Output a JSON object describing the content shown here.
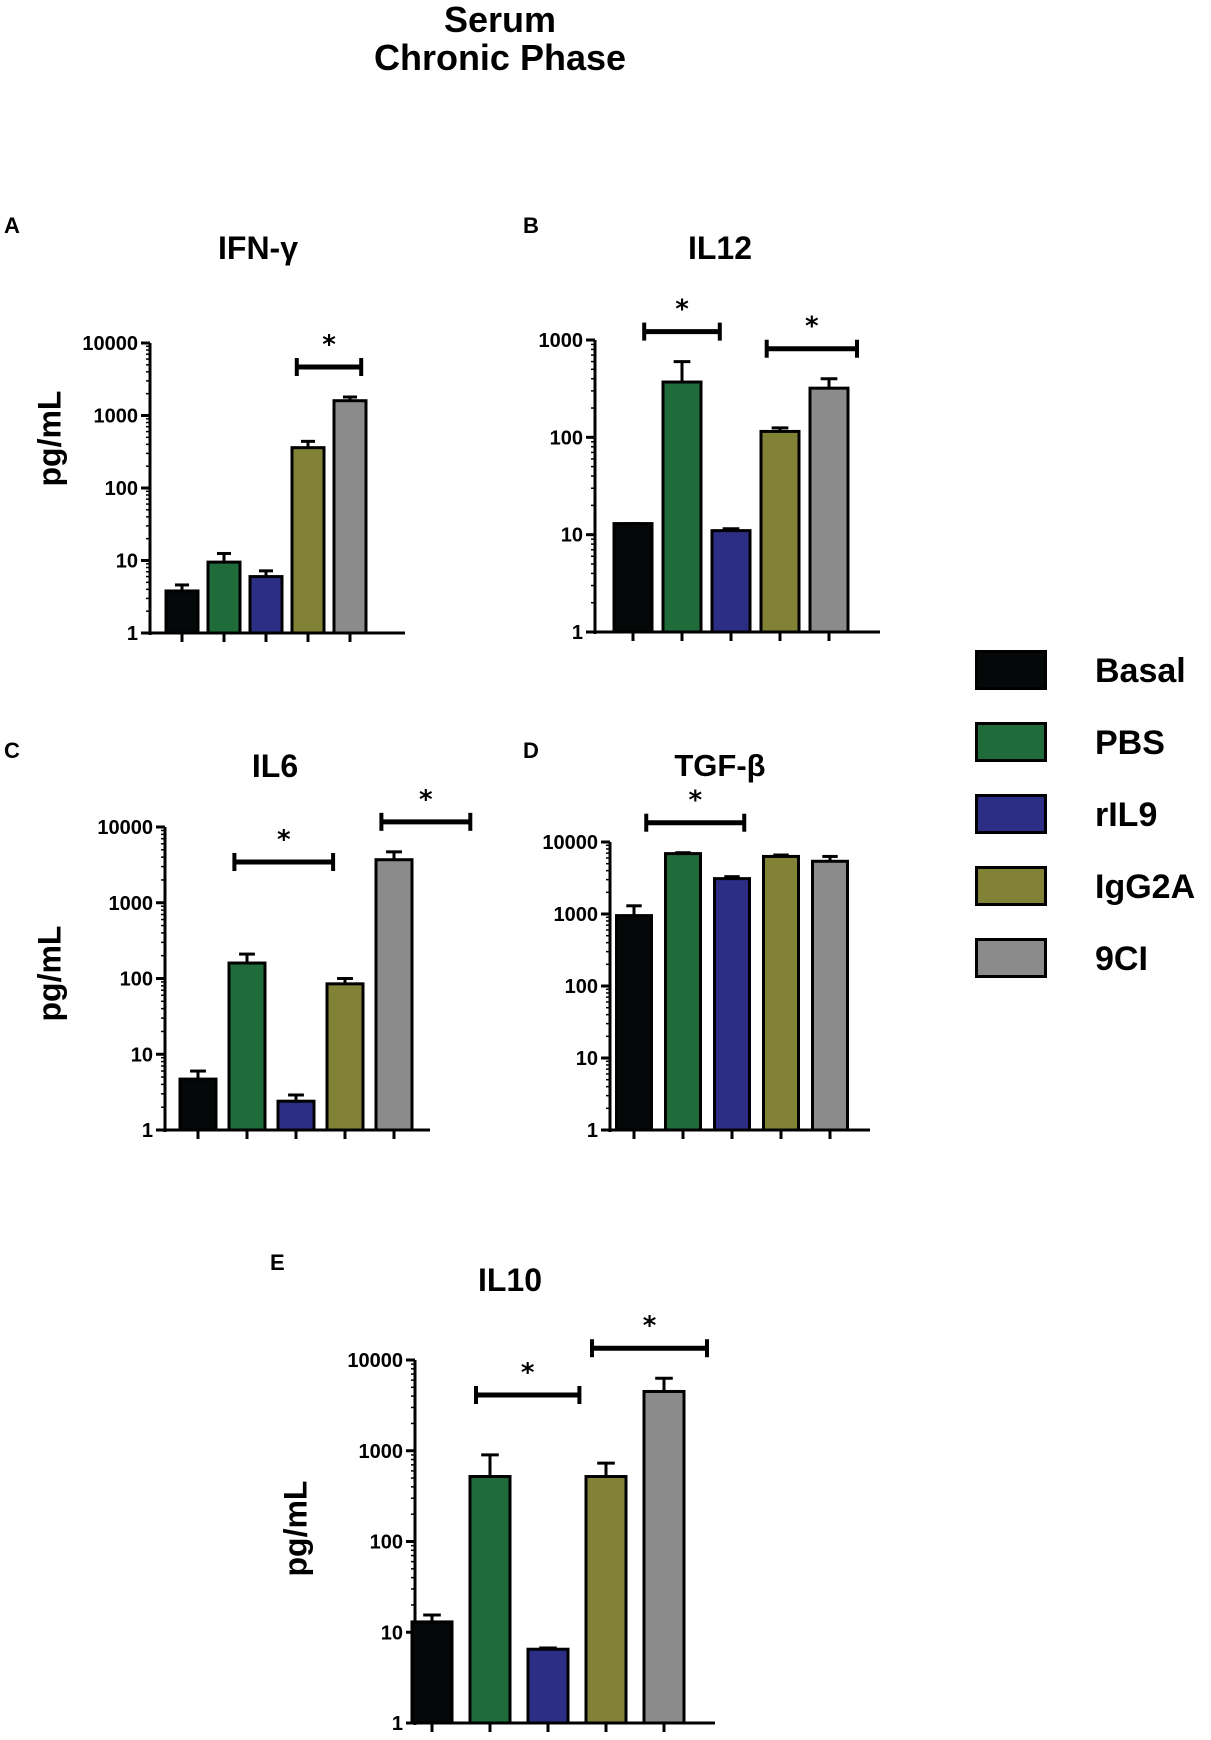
{
  "figure": {
    "title_line1": "Serum",
    "title_line2": "Chronic Phase"
  },
  "legend": [
    {
      "label": "Basal",
      "color": "#050808"
    },
    {
      "label": "PBS",
      "color": "#1f6b3a"
    },
    {
      "label": "rIL9",
      "color": "#2c2e86"
    },
    {
      "label": "IgG2A",
      "color": "#828237"
    },
    {
      "label": "9CI",
      "color": "#8b8b8b"
    }
  ],
  "chart_data": [
    {
      "id": "A",
      "letter": "A",
      "type": "bar",
      "title": "IFN-γ",
      "ylabel": "pg/mL",
      "yscale": "log",
      "ylim": [
        1,
        10000
      ],
      "yticks": [
        "1",
        "10",
        "100",
        "1000",
        "10000"
      ],
      "categories": [
        "Basal",
        "PBS",
        "rIL9",
        "IgG2A",
        "9CI"
      ],
      "values": [
        3.8,
        9.5,
        6,
        360,
        1600
      ],
      "errors": [
        4.6,
        12.5,
        7.2,
        440,
        1800
      ],
      "significance": [
        {
          "from": 3,
          "to": 4,
          "label": "*"
        }
      ]
    },
    {
      "id": "B",
      "letter": "B",
      "type": "bar",
      "title": "IL12",
      "ylabel": "",
      "yscale": "log",
      "ylim": [
        1,
        1000
      ],
      "yticks": [
        "1",
        "10",
        "100",
        "1000"
      ],
      "categories": [
        "Basal",
        "PBS",
        "rIL9",
        "IgG2A",
        "9CI"
      ],
      "values": [
        13,
        370,
        11,
        115,
        320
      ],
      "errors": [
        13,
        600,
        11.5,
        125,
        400
      ],
      "significance": [
        {
          "from": 0.5,
          "to": 1.5,
          "label": "*"
        },
        {
          "from": 3,
          "to": 4.3,
          "label": "*"
        }
      ]
    },
    {
      "id": "C",
      "letter": "C",
      "type": "bar",
      "title": "IL6",
      "ylabel": "pg/mL",
      "yscale": "log",
      "ylim": [
        1,
        10000
      ],
      "yticks": [
        "1",
        "10",
        "100",
        "1000",
        "10000"
      ],
      "categories": [
        "Basal",
        "PBS",
        "rIL9",
        "IgG2A",
        "9CI"
      ],
      "values": [
        4.7,
        160,
        2.4,
        85,
        3700
      ],
      "errors": [
        6,
        210,
        2.9,
        100,
        4700
      ],
      "significance": [
        {
          "from": 1,
          "to": 2.5,
          "label": "*"
        },
        {
          "from": 4,
          "to": 5.3,
          "label": "*"
        }
      ]
    },
    {
      "id": "D",
      "letter": "D",
      "type": "bar",
      "title": "TGF-β",
      "ylabel": "",
      "yscale": "log",
      "ylim": [
        1,
        10000
      ],
      "yticks": [
        "1",
        "10",
        "100",
        "1000",
        "10000"
      ],
      "categories": [
        "Basal",
        "PBS",
        "rIL9",
        "IgG2A",
        "9CI"
      ],
      "values": [
        950,
        6900,
        3100,
        6300,
        5400
      ],
      "errors": [
        1300,
        7100,
        3300,
        6600,
        6300
      ],
      "significance": [
        {
          "from": 0.5,
          "to": 2,
          "label": "*"
        }
      ]
    },
    {
      "id": "E",
      "letter": "E",
      "type": "bar",
      "title": "IL10",
      "ylabel": "pg/mL",
      "yscale": "log",
      "ylim": [
        1,
        10000
      ],
      "yticks": [
        "1",
        "10",
        "100",
        "1000",
        "10000"
      ],
      "categories": [
        "Basal",
        "PBS",
        "rIL9",
        "IgG2A",
        "9CI"
      ],
      "values": [
        13,
        520,
        6.5,
        520,
        4500
      ],
      "errors": [
        15.5,
        900,
        6.7,
        730,
        6300
      ],
      "significance": [
        {
          "from": 1,
          "to": 2.3,
          "label": "*"
        },
        {
          "from": 3,
          "to": 4.5,
          "label": "*"
        }
      ]
    }
  ]
}
